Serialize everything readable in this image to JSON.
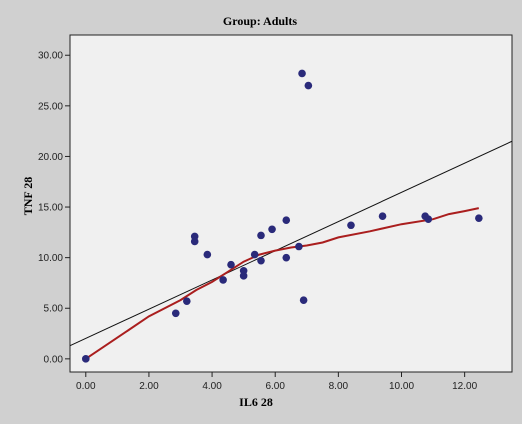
{
  "chart_data": {
    "type": "scatter",
    "title": "Group:  Adults",
    "xlabel": "IL6   28",
    "ylabel": "TNF   28",
    "xlim": [
      -0.5,
      13.5
    ],
    "ylim": [
      -1.3,
      32
    ],
    "x_ticks": [
      "0.00",
      "2.00",
      "4.00",
      "6.00",
      "8.00",
      "10.00",
      "12.00"
    ],
    "y_ticks": [
      "0.00",
      "5.00",
      "10.00",
      "15.00",
      "20.00",
      "25.00",
      "30.00"
    ],
    "grid": false,
    "legend": "none",
    "colors": {
      "background": "#d0d0d0",
      "plot_area": "#f0f0f0",
      "points": "#2a2a7a",
      "fit_line": "#111111",
      "loess_curve": "#aa1e1e"
    },
    "points": [
      {
        "x": 0.0,
        "y": 0.0
      },
      {
        "x": 2.85,
        "y": 4.5
      },
      {
        "x": 3.2,
        "y": 5.7
      },
      {
        "x": 3.45,
        "y": 12.1
      },
      {
        "x": 3.45,
        "y": 11.6
      },
      {
        "x": 3.85,
        "y": 10.3
      },
      {
        "x": 4.35,
        "y": 7.8
      },
      {
        "x": 4.6,
        "y": 9.3
      },
      {
        "x": 5.0,
        "y": 8.2
      },
      {
        "x": 5.0,
        "y": 8.7
      },
      {
        "x": 5.35,
        "y": 10.3
      },
      {
        "x": 5.55,
        "y": 12.2
      },
      {
        "x": 5.55,
        "y": 9.7
      },
      {
        "x": 5.9,
        "y": 12.8
      },
      {
        "x": 6.35,
        "y": 13.7
      },
      {
        "x": 6.35,
        "y": 10.0
      },
      {
        "x": 6.75,
        "y": 11.1
      },
      {
        "x": 6.85,
        "y": 28.2
      },
      {
        "x": 6.9,
        "y": 5.8
      },
      {
        "x": 7.05,
        "y": 27.0
      },
      {
        "x": 8.4,
        "y": 13.2
      },
      {
        "x": 9.4,
        "y": 14.1
      },
      {
        "x": 10.75,
        "y": 14.1
      },
      {
        "x": 10.85,
        "y": 13.8
      },
      {
        "x": 12.45,
        "y": 13.9
      }
    ],
    "fit_line": [
      {
        "x": -0.5,
        "y": 1.3
      },
      {
        "x": 13.5,
        "y": 21.5
      }
    ],
    "loess_curve": [
      {
        "x": 0.0,
        "y": 0.0
      },
      {
        "x": 1.0,
        "y": 2.1
      },
      {
        "x": 2.0,
        "y": 4.2
      },
      {
        "x": 3.0,
        "y": 5.8
      },
      {
        "x": 3.5,
        "y": 6.8
      },
      {
        "x": 4.0,
        "y": 7.6
      },
      {
        "x": 4.5,
        "y": 8.6
      },
      {
        "x": 5.0,
        "y": 9.6
      },
      {
        "x": 5.5,
        "y": 10.3
      },
      {
        "x": 6.0,
        "y": 10.7
      },
      {
        "x": 6.5,
        "y": 11.0
      },
      {
        "x": 7.0,
        "y": 11.2
      },
      {
        "x": 7.5,
        "y": 11.5
      },
      {
        "x": 8.0,
        "y": 12.0
      },
      {
        "x": 9.0,
        "y": 12.6
      },
      {
        "x": 10.0,
        "y": 13.3
      },
      {
        "x": 11.0,
        "y": 13.8
      },
      {
        "x": 11.5,
        "y": 14.3
      },
      {
        "x": 12.0,
        "y": 14.6
      },
      {
        "x": 12.45,
        "y": 14.9
      }
    ]
  }
}
